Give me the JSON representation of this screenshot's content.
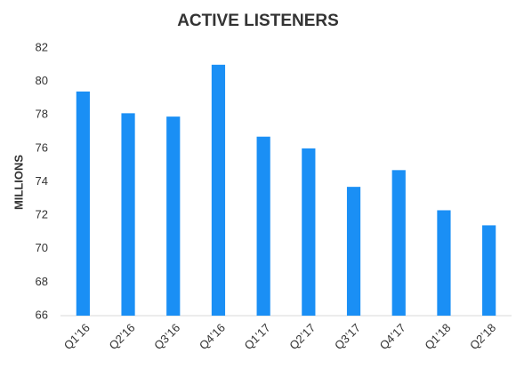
{
  "chart_data": {
    "type": "bar",
    "title": "ACTIVE LISTENERS",
    "y_label": "MILLIONS",
    "categories": [
      "Q1’16",
      "Q2’16",
      "Q3’16",
      "Q4’16",
      "Q1’17",
      "Q2’17",
      "Q3’17",
      "Q4’17",
      "Q1’18",
      "Q2’18"
    ],
    "values": [
      79.4,
      78.1,
      77.9,
      81.0,
      76.7,
      76.0,
      73.7,
      74.7,
      72.3,
      71.4
    ],
    "color": "#1a8ff5",
    "ylim": [
      66,
      82
    ],
    "yticks": [
      66,
      68,
      70,
      72,
      74,
      76,
      78,
      80,
      82
    ],
    "grid": false
  }
}
